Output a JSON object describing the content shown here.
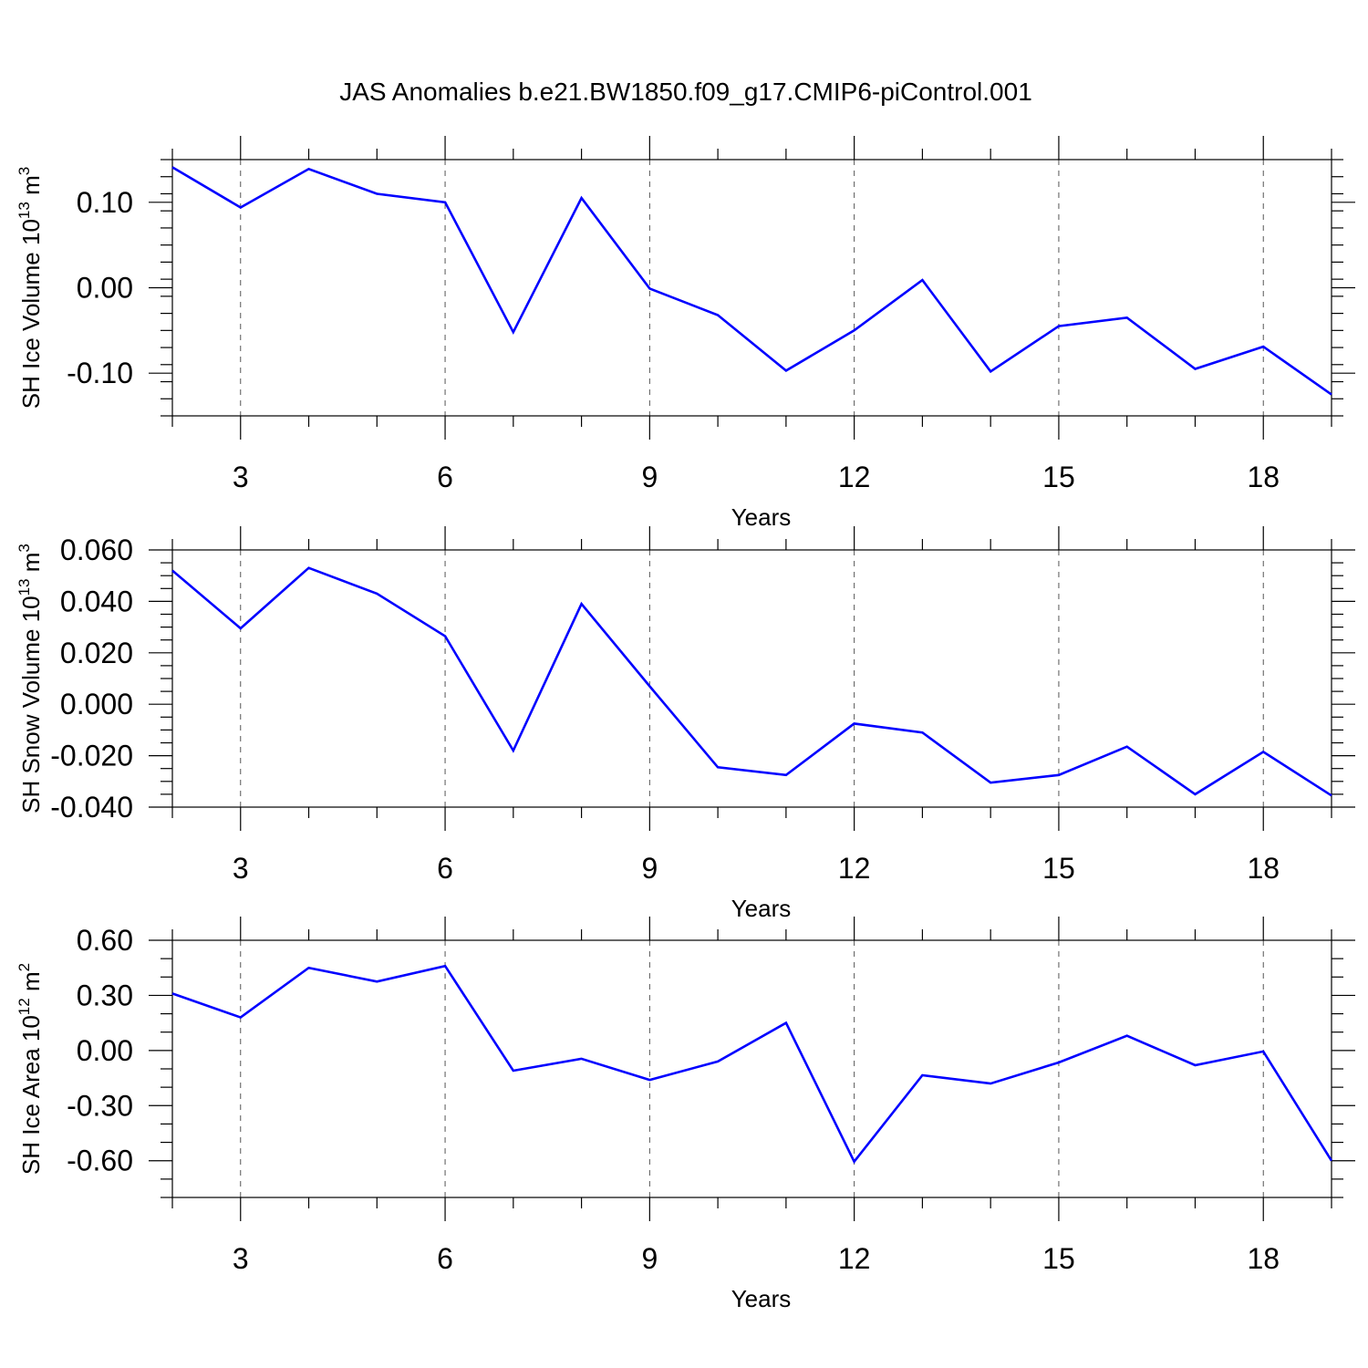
{
  "figure_title": "JAS Anomalies b.e21.BW1850.f09_g17.CMIP6-piControl.001",
  "colors": {
    "series": "#0000ff",
    "grid": "#555555",
    "axis": "#000000"
  },
  "chart_data": [
    {
      "type": "line",
      "ylabel_main": "SH Ice Volume 10",
      "ylabel_sup1": "13",
      "ylabel_mid": " m",
      "ylabel_sup2": "3",
      "xlabel": "Years",
      "xlim": [
        2,
        19
      ],
      "ylim": [
        -0.15,
        0.15
      ],
      "x_ticks": [
        3,
        6,
        9,
        12,
        15,
        18
      ],
      "y_ticks": [
        0.1,
        0.0,
        -0.1
      ],
      "y_tick_labels": [
        "0.10",
        "0.00",
        "-0.10"
      ],
      "y_minor_step": 0.02,
      "grid": "vertical dashed at major x ticks",
      "x": [
        2,
        3,
        4,
        5,
        6,
        7,
        8,
        9,
        10,
        11,
        12,
        13,
        14,
        15,
        16,
        17,
        18,
        19
      ],
      "values": [
        0.141,
        0.094,
        0.139,
        0.11,
        0.1,
        -0.052,
        0.105,
        -0.001,
        -0.032,
        -0.097,
        -0.05,
        0.009,
        -0.098,
        -0.045,
        -0.035,
        -0.095,
        -0.069,
        -0.125
      ]
    },
    {
      "type": "line",
      "ylabel_main": "SH Snow Volume 10",
      "ylabel_sup1": "13",
      "ylabel_mid": " m",
      "ylabel_sup2": "3",
      "xlabel": "Years",
      "xlim": [
        2,
        19
      ],
      "ylim": [
        -0.04,
        0.06
      ],
      "x_ticks": [
        3,
        6,
        9,
        12,
        15,
        18
      ],
      "y_ticks": [
        0.06,
        0.04,
        0.02,
        0.0,
        -0.02,
        -0.04
      ],
      "y_tick_labels": [
        "0.060",
        "0.040",
        "0.020",
        "0.000",
        "-0.020",
        "-0.040"
      ],
      "y_minor_step": 0.005,
      "grid": "vertical dashed at major x ticks",
      "x": [
        2,
        3,
        4,
        5,
        6,
        7,
        8,
        9,
        10,
        11,
        12,
        13,
        14,
        15,
        16,
        17,
        18,
        19
      ],
      "values": [
        0.052,
        0.0295,
        0.053,
        0.043,
        0.0265,
        -0.018,
        0.039,
        0.007,
        -0.0245,
        -0.0275,
        -0.0075,
        -0.011,
        -0.0305,
        -0.0275,
        -0.0165,
        -0.035,
        -0.0185,
        -0.0355
      ]
    },
    {
      "type": "line",
      "ylabel_main": "SH Ice Area 10",
      "ylabel_sup1": "12",
      "ylabel_mid": " m",
      "ylabel_sup2": "2",
      "xlabel": "Years",
      "xlim": [
        2,
        19
      ],
      "ylim": [
        -0.8,
        0.6
      ],
      "x_ticks": [
        3,
        6,
        9,
        12,
        15,
        18
      ],
      "y_ticks": [
        0.6,
        0.3,
        0.0,
        -0.3,
        -0.6
      ],
      "y_tick_labels": [
        "0.60",
        "0.30",
        "0.00",
        "-0.30",
        "-0.60"
      ],
      "y_minor_step": 0.1,
      "grid": "vertical dashed at major x ticks",
      "x": [
        2,
        3,
        4,
        5,
        6,
        7,
        8,
        9,
        10,
        11,
        12,
        13,
        14,
        15,
        16,
        17,
        18,
        19
      ],
      "values": [
        0.31,
        0.18,
        0.45,
        0.375,
        0.46,
        -0.11,
        -0.045,
        -0.16,
        -0.06,
        0.15,
        -0.605,
        -0.135,
        -0.18,
        -0.065,
        0.08,
        -0.08,
        -0.005,
        -0.6
      ]
    }
  ]
}
